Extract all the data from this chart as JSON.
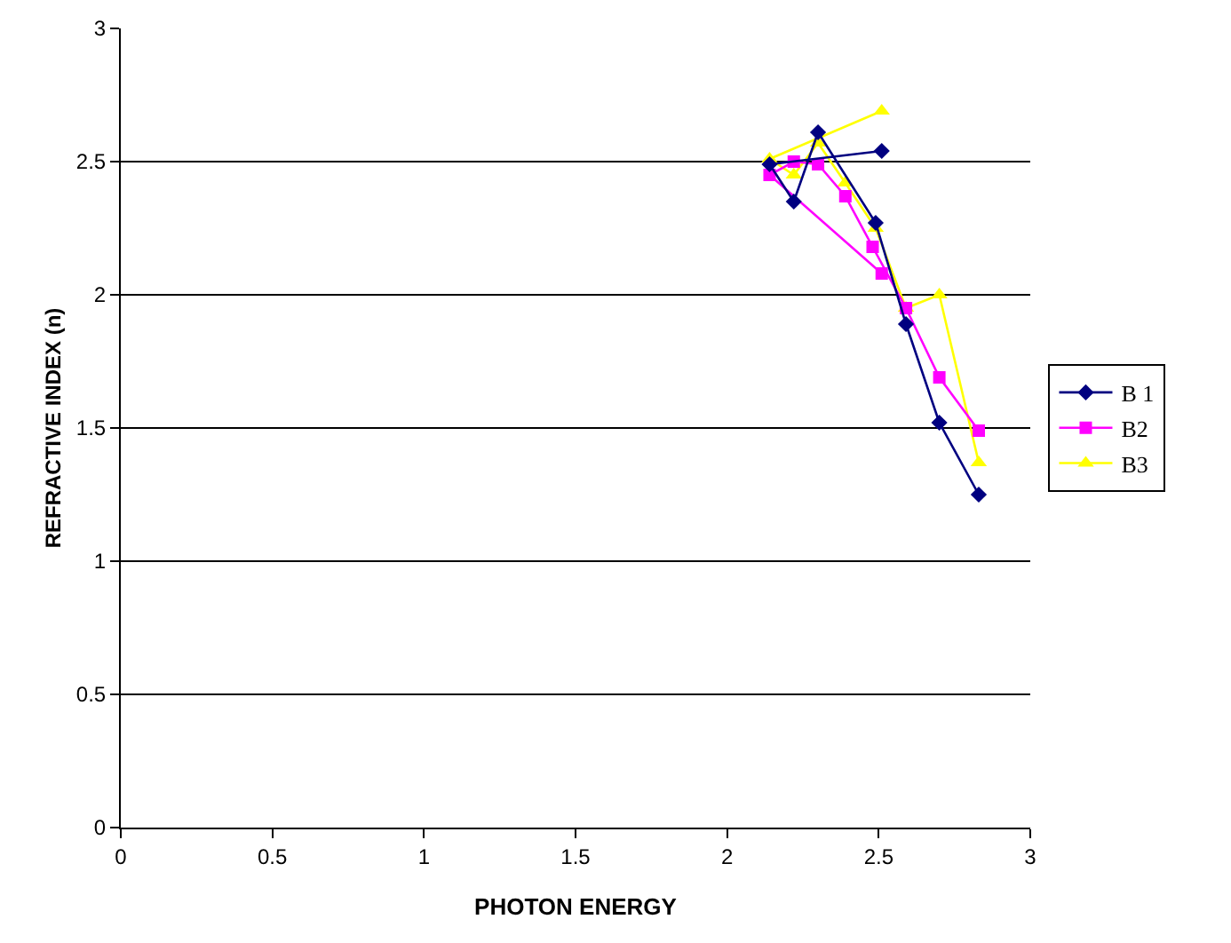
{
  "chart_data": {
    "type": "line",
    "xlabel": "PHOTON ENERGY",
    "ylabel": "REFRACTIVE INDEX (n)",
    "xlim": [
      0,
      3
    ],
    "xticks": [
      0,
      0.5,
      1,
      1.5,
      2,
      2.5,
      3
    ],
    "ylim": [
      0,
      3
    ],
    "yticks": [
      0,
      0.5,
      1,
      1.5,
      2,
      2.5,
      3
    ],
    "grid": "y",
    "legend": "right",
    "series": [
      {
        "name": "B 1",
        "color": "#000080",
        "marker": "diamond",
        "x": [
          2.51,
          2.14,
          2.22,
          2.3,
          2.49,
          2.59,
          2.7,
          2.83
        ],
        "values": [
          2.54,
          2.49,
          2.35,
          2.61,
          2.27,
          1.89,
          1.52,
          1.25
        ]
      },
      {
        "name": "B2",
        "color": "#ff00ff",
        "marker": "square",
        "x": [
          2.51,
          2.14,
          2.22,
          2.3,
          2.39,
          2.48,
          2.59,
          2.7,
          2.83
        ],
        "values": [
          2.08,
          2.45,
          2.5,
          2.49,
          2.37,
          2.18,
          1.95,
          1.69,
          1.49
        ]
      },
      {
        "name": "B3",
        "color": "#ffff00",
        "marker": "triangle",
        "x": [
          2.51,
          2.14,
          2.22,
          2.3,
          2.39,
          2.49,
          2.59,
          2.7,
          2.83
        ],
        "values": [
          2.69,
          2.51,
          2.45,
          2.57,
          2.42,
          2.25,
          1.95,
          2.0,
          1.37
        ]
      }
    ]
  }
}
